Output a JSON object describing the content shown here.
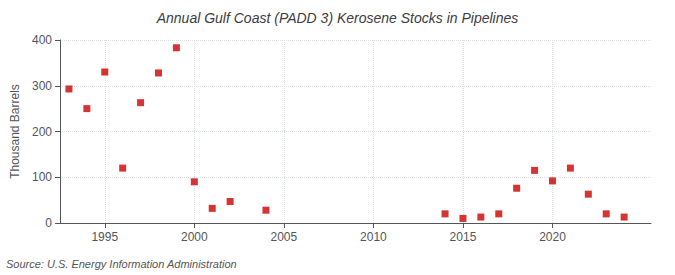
{
  "chart_data": {
    "type": "scatter",
    "title": "Annual Gulf Coast (PADD 3) Kerosene Stocks in Pipelines",
    "ylabel": "Thousand Barrels",
    "annotation": "Source: U.S. Energy Information Administration",
    "x": [
      1993,
      1994,
      1995,
      1996,
      1997,
      1998,
      1999,
      2000,
      2001,
      2002,
      2004,
      2014,
      2015,
      2016,
      2017,
      2018,
      2019,
      2020,
      2021,
      2022,
      2023,
      2024
    ],
    "values": [
      293,
      250,
      330,
      120,
      263,
      328,
      383,
      90,
      32,
      47,
      28,
      20,
      10,
      13,
      20,
      76,
      115,
      92,
      120,
      63,
      20,
      13
    ],
    "color": "#cc0000",
    "marker": "square",
    "xlim": [
      1992.5,
      2025.5
    ],
    "xticks": [
      1995,
      2000,
      2005,
      2010,
      2015,
      2020
    ],
    "ylim": [
      0,
      400
    ],
    "yticks": [
      0,
      100,
      200,
      300,
      400
    ],
    "grid": true
  }
}
